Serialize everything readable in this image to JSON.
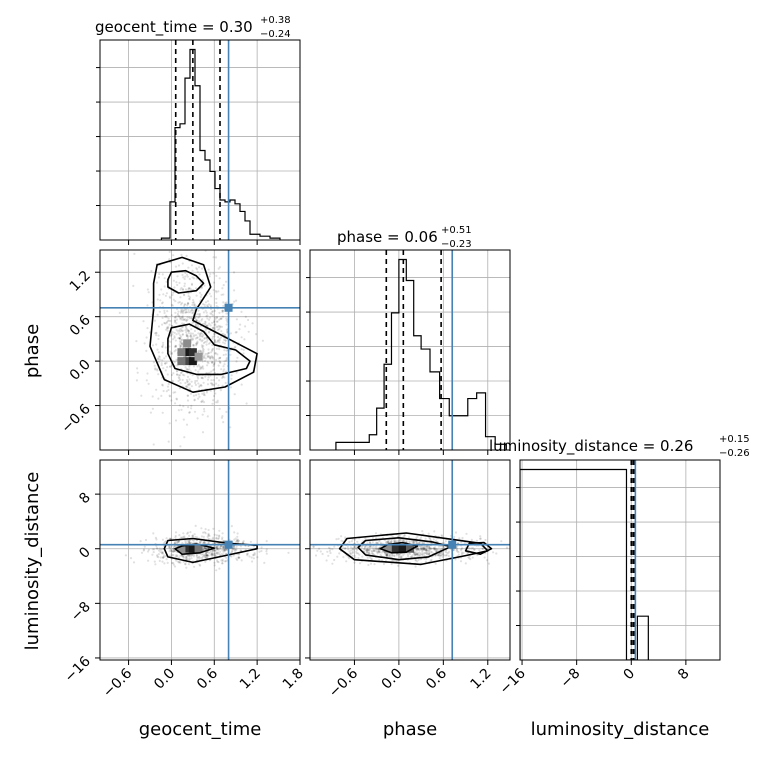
{
  "chart_data": {
    "type": "corner",
    "params": [
      "geocent_time",
      "phase",
      "luminosity_distance"
    ],
    "truth_color": "#4682b4",
    "axis_labels": {
      "geocent_time": "geocent_time",
      "phase": "phase",
      "luminosity_distance": "luminosity_distance"
    },
    "titles": [
      {
        "param": "geocent_time",
        "text": "geocent_time = 0.30",
        "plus": "+0.38",
        "minus": "−0.24"
      },
      {
        "param": "phase",
        "text": "phase = 0.06",
        "plus": "+0.51",
        "minus": "−0.23"
      },
      {
        "param": "luminosity_distance",
        "text": "luminosity_distance = 0.26",
        "plus": "+0.15",
        "minus": "−0.26"
      }
    ],
    "ranges": {
      "geocent_time": [
        -1.0,
        1.8
      ],
      "phase": [
        -1.2,
        1.5
      ],
      "luminosity_distance": [
        -16.3,
        13.0
      ]
    },
    "ticks": {
      "geocent_time": [
        {
          "v": -0.6,
          "label": "−0.6"
        },
        {
          "v": 0.0,
          "label": "0.0"
        },
        {
          "v": 0.6,
          "label": "0.6"
        },
        {
          "v": 1.2,
          "label": "1.2"
        },
        {
          "v": 1.8,
          "label": "1.8"
        }
      ],
      "phase": [
        {
          "v": -0.6,
          "label": "−0.6"
        },
        {
          "v": 0.0,
          "label": "0.0"
        },
        {
          "v": 0.6,
          "label": "0.6"
        },
        {
          "v": 1.2,
          "label": "1.2"
        }
      ],
      "luminosity_distance": [
        {
          "v": -16,
          "label": "−16"
        },
        {
          "v": -8,
          "label": "−8"
        },
        {
          "v": 0,
          "label": "0"
        },
        {
          "v": 8,
          "label": "8"
        }
      ]
    },
    "truths": {
      "geocent_time": 0.8,
      "phase": 0.72,
      "luminosity_distance": 0.6
    },
    "quantiles": {
      "geocent_time": [
        0.06,
        0.3,
        0.68
      ],
      "phase": [
        -0.17,
        0.06,
        0.57
      ],
      "luminosity_distance": [
        0.0,
        0.26,
        0.41
      ]
    },
    "histograms": {
      "geocent_time": {
        "edges": [
          -0.14,
          -0.02,
          0.05,
          0.12,
          0.19,
          0.26,
          0.33,
          0.4,
          0.47,
          0.54,
          0.61,
          0.68,
          0.75,
          0.82,
          0.89,
          0.96,
          1.03,
          1.1,
          1.24,
          1.38,
          1.52
        ],
        "counts": [
          0.01,
          0.2,
          0.59,
          0.61,
          0.85,
          1.0,
          0.81,
          0.47,
          0.42,
          0.36,
          0.27,
          0.21,
          0.2,
          0.21,
          0.19,
          0.15,
          0.1,
          0.03,
          0.02,
          0.01
        ]
      },
      "phase": {
        "edges": [
          -0.85,
          -0.4,
          -0.3,
          -0.2,
          -0.1,
          0.0,
          0.1,
          0.2,
          0.3,
          0.42,
          0.55,
          0.68,
          0.8,
          0.93,
          1.05,
          1.17,
          1.3,
          1.45
        ],
        "counts": [
          0.04,
          0.08,
          0.22,
          0.45,
          0.72,
          1.0,
          0.89,
          0.6,
          0.53,
          0.41,
          0.27,
          0.18,
          0.18,
          0.27,
          0.3,
          0.07,
          0.03
        ]
      },
      "luminosity_distance": {
        "edges": [
          -16.3,
          -0.7,
          0.9,
          2.5
        ],
        "counts": [
          1.0,
          0.0,
          0.23
        ]
      }
    },
    "contours": [
      {
        "x": "geocent_time",
        "y": "phase",
        "levels": [
          [
            [
              -0.05,
              1.1
            ],
            [
              0.0,
              1.2
            ],
            [
              0.2,
              1.22
            ],
            [
              0.35,
              1.15
            ],
            [
              0.45,
              1.05
            ],
            [
              0.35,
              0.95
            ],
            [
              0.1,
              0.92
            ],
            [
              -0.05,
              1.0
            ]
          ],
          [
            [
              0.0,
              0.45
            ],
            [
              0.25,
              0.5
            ],
            [
              0.45,
              0.4
            ],
            [
              0.6,
              0.22
            ],
            [
              0.9,
              0.15
            ],
            [
              1.1,
              0.0
            ],
            [
              1.05,
              -0.1
            ],
            [
              0.7,
              -0.18
            ],
            [
              0.35,
              -0.18
            ],
            [
              0.05,
              -0.1
            ],
            [
              -0.05,
              0.1
            ],
            [
              -0.05,
              0.3
            ]
          ],
          [
            [
              -0.2,
              1.3
            ],
            [
              0.15,
              1.4
            ],
            [
              0.45,
              1.3
            ],
            [
              0.55,
              1.0
            ],
            [
              0.35,
              0.7
            ],
            [
              0.3,
              0.55
            ],
            [
              0.6,
              0.4
            ],
            [
              0.9,
              0.25
            ],
            [
              1.2,
              0.1
            ],
            [
              1.15,
              -0.15
            ],
            [
              0.75,
              -0.35
            ],
            [
              0.3,
              -0.42
            ],
            [
              -0.1,
              -0.25
            ],
            [
              -0.3,
              0.2
            ],
            [
              -0.25,
              0.7
            ],
            [
              -0.25,
              1.05
            ]
          ]
        ],
        "core": [
          {
            "x": 0.22,
            "y": 0.12,
            "d": 1.0
          },
          {
            "x": 0.3,
            "y": 0.12,
            "d": 0.9
          },
          {
            "x": 0.22,
            "y": 0.0,
            "d": 0.8
          },
          {
            "x": 0.3,
            "y": 0.0,
            "d": 1.0
          },
          {
            "x": 0.14,
            "y": 0.12,
            "d": 0.55
          },
          {
            "x": 0.14,
            "y": 0.0,
            "d": 0.6
          },
          {
            "x": 0.22,
            "y": 0.24,
            "d": 0.5
          },
          {
            "x": 0.38,
            "y": 0.06,
            "d": 0.45
          }
        ]
      },
      {
        "x": "geocent_time",
        "y": "luminosity_distance",
        "levels": [
          [
            [
              0.15,
              0.4
            ],
            [
              0.35,
              0.7
            ],
            [
              0.6,
              0.1
            ],
            [
              0.4,
              -0.6
            ],
            [
              0.15,
              -0.8
            ],
            [
              0.05,
              0.0
            ]
          ],
          [
            [
              -0.05,
              1.2
            ],
            [
              0.3,
              1.5
            ],
            [
              0.8,
              0.8
            ],
            [
              1.2,
              0.5
            ],
            [
              1.2,
              0.0
            ],
            [
              0.8,
              -0.9
            ],
            [
              0.3,
              -2.0
            ],
            [
              -0.05,
              -1.2
            ],
            [
              -0.1,
              0.0
            ]
          ]
        ],
        "core": [
          {
            "x": 0.22,
            "y": 0.0,
            "d": 0.9
          },
          {
            "x": 0.3,
            "y": 0.0,
            "d": 1.0
          },
          {
            "x": 0.38,
            "y": 0.0,
            "d": 0.6
          },
          {
            "x": 0.14,
            "y": 0.0,
            "d": 0.5
          }
        ]
      },
      {
        "x": "phase",
        "y": "luminosity_distance",
        "levels": [
          [
            [
              -0.15,
              0.6
            ],
            [
              0.05,
              0.9
            ],
            [
              0.25,
              0.4
            ],
            [
              0.1,
              -0.5
            ],
            [
              -0.1,
              -0.6
            ],
            [
              -0.25,
              0.0
            ]
          ],
          [
            [
              -0.45,
              1.2
            ],
            [
              0.0,
              1.6
            ],
            [
              0.45,
              1.0
            ],
            [
              0.7,
              0.3
            ],
            [
              0.4,
              -1.2
            ],
            [
              0.0,
              -1.6
            ],
            [
              -0.45,
              -0.9
            ],
            [
              -0.55,
              0.2
            ]
          ],
          [
            [
              -0.7,
              1.5
            ],
            [
              0.1,
              2.3
            ],
            [
              0.7,
              1.4
            ],
            [
              1.1,
              0.8
            ],
            [
              1.2,
              -0.3
            ],
            [
              0.9,
              -1.0
            ],
            [
              0.3,
              -2.3
            ],
            [
              -0.6,
              -1.6
            ],
            [
              -0.8,
              0.0
            ]
          ],
          [
            [
              0.95,
              0.8
            ],
            [
              1.15,
              0.9
            ],
            [
              1.25,
              0.0
            ],
            [
              1.1,
              -0.8
            ],
            [
              0.9,
              -0.3
            ]
          ]
        ],
        "core": [
          {
            "x": -0.05,
            "y": 0.0,
            "d": 0.9
          },
          {
            "x": 0.05,
            "y": 0.0,
            "d": 1.0
          },
          {
            "x": 0.15,
            "y": 0.0,
            "d": 0.7
          },
          {
            "x": -0.15,
            "y": 0.0,
            "d": 0.5
          }
        ]
      }
    ],
    "scatter": [
      {
        "x": "geocent_time",
        "y": "phase",
        "cx": 0.32,
        "cy": 0.3,
        "sx": 0.3,
        "sy": 0.5,
        "n": 1100
      },
      {
        "x": "geocent_time",
        "y": "luminosity_distance",
        "cx": 0.4,
        "cy": 0.0,
        "sx": 0.35,
        "sy": 1.0,
        "n": 700
      },
      {
        "x": "phase",
        "y": "luminosity_distance",
        "cx": 0.1,
        "cy": 0.0,
        "sx": 0.5,
        "sy": 0.9,
        "n": 900
      }
    ]
  }
}
